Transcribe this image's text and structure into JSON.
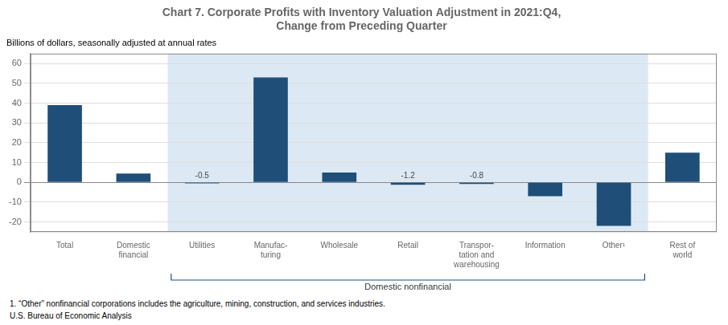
{
  "chart_data": {
    "type": "bar",
    "title": "Chart 7. Corporate Profits with Inventory Valuation Adjustment in 2021:Q4,\nChange from Preceding Quarter",
    "subtitle": "Billions of dollars, seasonally adjusted at annual rates",
    "categories": [
      "Total",
      "Domestic\nfinancial",
      "Utilities",
      "Manufac-\nturing",
      "Wholesale",
      "Retail",
      "Transpor-\ntation and\nwarehousing",
      "Information",
      "Other¹",
      "Rest of\nworld"
    ],
    "values": [
      39.0,
      4.5,
      -0.5,
      53.0,
      5.0,
      -1.2,
      -0.8,
      -7.0,
      -22.0,
      15.0
    ],
    "value_labels": [
      null,
      null,
      "-0.5",
      null,
      null,
      "-1.2",
      "-0.8",
      null,
      null,
      null
    ],
    "color": "#1F4E79",
    "ylim": [
      -25,
      65
    ],
    "yticks": [
      -20,
      -10,
      0,
      10,
      20,
      30,
      40,
      50,
      60
    ],
    "grid": true,
    "annotations": [
      {
        "text": "Domestic nonfinancial",
        "from": "Utilities",
        "to": "Other¹",
        "color": "#dce9f5"
      }
    ],
    "footnotes": [
      "1. “Other” nonfinancial corporations includes the agriculture, mining, construction, and services industries.",
      "U.S. Bureau of Economic Analysis"
    ]
  }
}
